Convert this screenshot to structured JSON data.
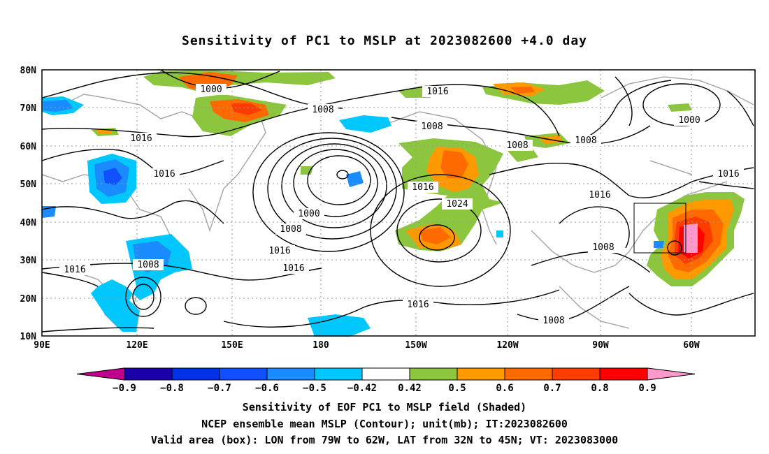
{
  "title": "Sensitivity of PC1 to MSLP at 2023082600 +4.0 day",
  "lat_labels": [
    "80N",
    "70N",
    "60N",
    "50N",
    "40N",
    "30N",
    "20N",
    "10N"
  ],
  "lon_labels": [
    "90E",
    "120E",
    "150E",
    "180",
    "150W",
    "120W",
    "90W",
    "60W"
  ],
  "contour_labels": [
    "1000",
    "1008",
    "1016",
    "1016",
    "1008",
    "1016",
    "1008",
    "1016",
    "1000",
    "1008",
    "1016",
    "1024",
    "1016",
    "1008",
    "1016",
    "1016",
    "1000",
    "1008",
    "1008",
    "1016",
    "1008",
    "1016",
    "1008"
  ],
  "colorbar": {
    "labels": [
      "-0.9",
      "-0.8",
      "-0.7",
      "-0.6",
      "-0.5",
      "-0.42",
      "0.42",
      "0.5",
      "0.6",
      "0.7",
      "0.8",
      "0.9"
    ],
    "colors": [
      "#1a00a8",
      "#0030e8",
      "#1050ff",
      "#1a8cff",
      "#00c8ff",
      "#ffffff",
      "#8cc63f",
      "#ff9900",
      "#ff6a00",
      "#ff3c00",
      "#ff0000"
    ],
    "low_end_color": "#c0008c",
    "high_end_color": "#ff99cc"
  },
  "captions": {
    "line1": "Sensitivity of EOF PC1 to MSLP field (Shaded)",
    "line2": "NCEP ensemble mean MSLP (Contour); unit(mb); IT:2023082600",
    "line3": "Valid area (box): LON from 79W to 62W, LAT from 32N to 45N; VT: 2023083000"
  }
}
